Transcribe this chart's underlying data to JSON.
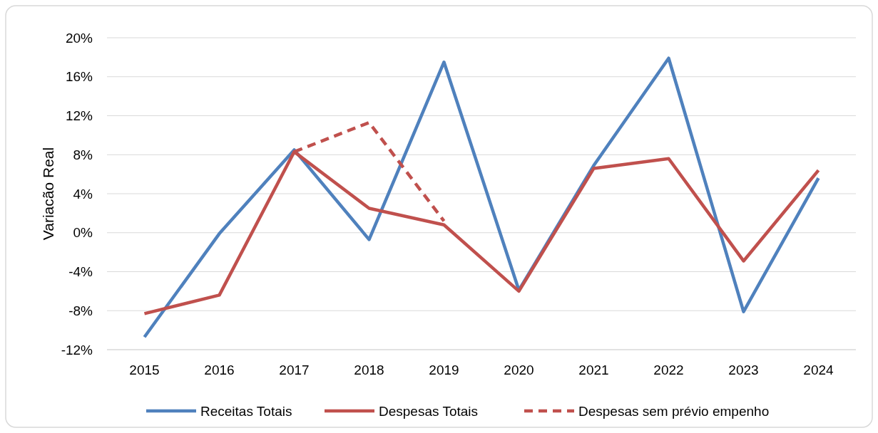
{
  "chart_data": {
    "type": "line",
    "ylabel": "Variacão Real",
    "categories": [
      "2015",
      "2016",
      "2017",
      "2018",
      "2019",
      "2020",
      "2021",
      "2022",
      "2023",
      "2024"
    ],
    "series": [
      {
        "name": "Receitas Totais",
        "color": "#4f81bd",
        "values": [
          -10.7,
          -0.1,
          8.5,
          -0.7,
          17.5,
          -5.9,
          6.9,
          17.9,
          -8.1,
          5.6
        ]
      },
      {
        "name": "Despesas Totais",
        "color": "#c0504d",
        "values": [
          -8.3,
          -6.4,
          8.3,
          2.5,
          0.8,
          -6.0,
          6.6,
          7.6,
          -2.9,
          6.4
        ]
      },
      {
        "name": "Despesas sem prévio empenho",
        "color": "#c0504d",
        "line_style": "dashed",
        "values": [
          null,
          null,
          8.3,
          11.3,
          1.2,
          null,
          null,
          null,
          null,
          null
        ]
      }
    ],
    "ylim": [
      -12,
      20
    ],
    "yticks": [
      {
        "value": -12,
        "label": "-12%"
      },
      {
        "value": -8,
        "label": "-8%"
      },
      {
        "value": -4,
        "label": "-4%"
      },
      {
        "value": 0,
        "label": "0%"
      },
      {
        "value": 4,
        "label": "4%"
      },
      {
        "value": 8,
        "label": "8%"
      },
      {
        "value": 12,
        "label": "12%"
      },
      {
        "value": 16,
        "label": "16%"
      },
      {
        "value": 20,
        "label": "20%"
      }
    ],
    "grid": "y",
    "legend": "bottom"
  }
}
